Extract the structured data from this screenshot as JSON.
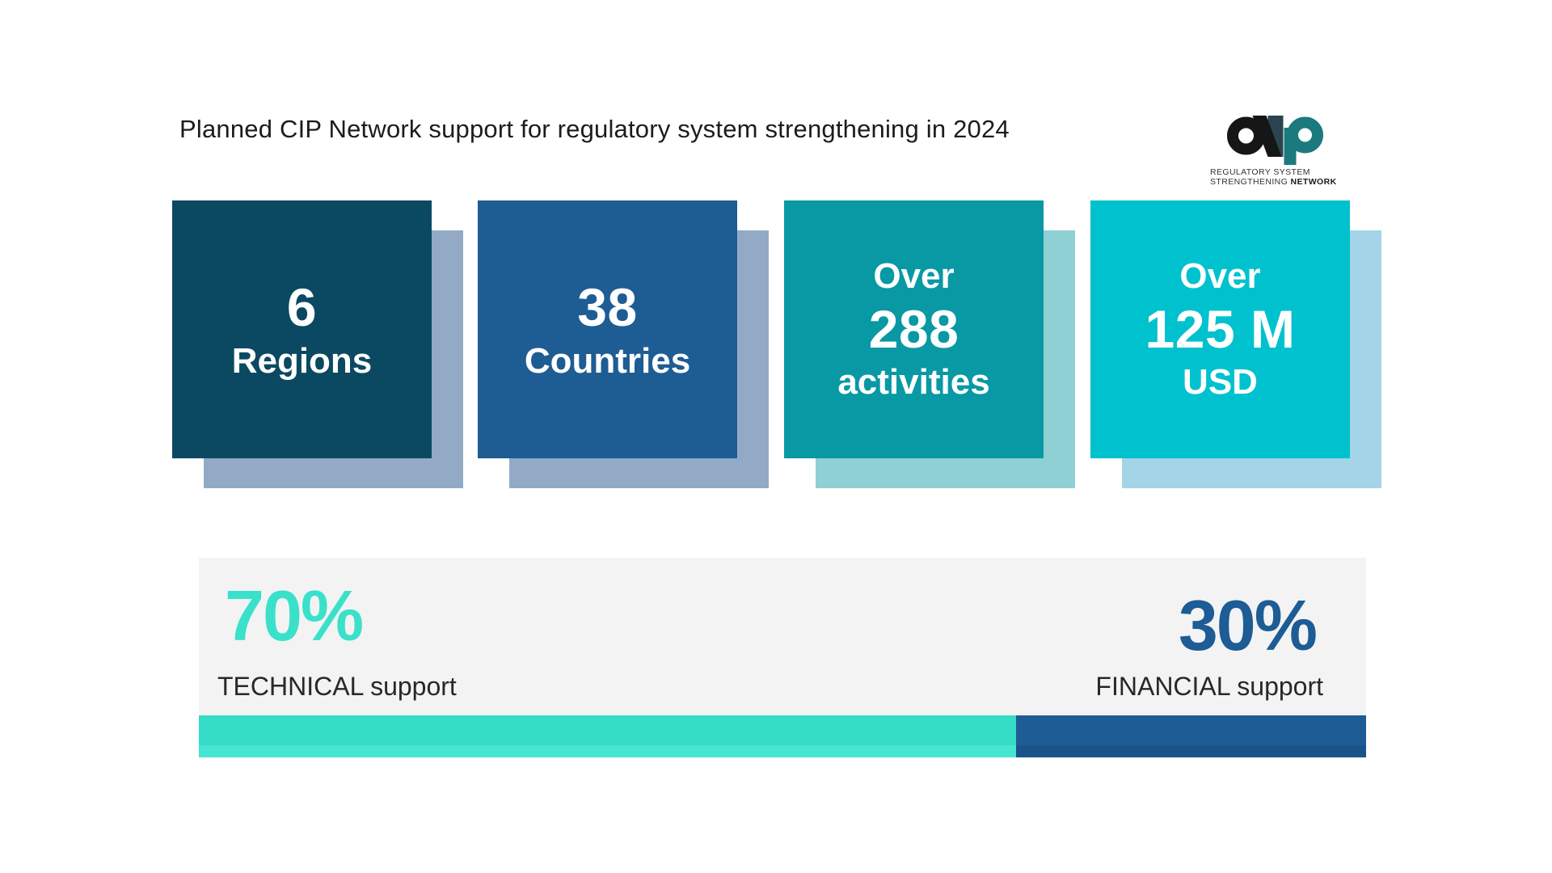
{
  "title": "Planned CIP Network support for regulatory system strengthening in 2024",
  "logo": {
    "line1": "REGULATORY SYSTEM",
    "line2_normal": "STRENGTHENING ",
    "line2_bold": "NETWORK"
  },
  "stats": [
    {
      "name": "regions",
      "color": "#0B4962",
      "shadow": "#93AAC7",
      "lines": [
        "6",
        "Regions"
      ]
    },
    {
      "name": "countries",
      "color": "#1E5C94",
      "shadow": "#93AAC7",
      "lines": [
        "38",
        "Countries"
      ]
    },
    {
      "name": "activities",
      "color": "#0899A4",
      "shadow": "#8FD0D4",
      "lines": [
        "Over",
        "288",
        "activities"
      ]
    },
    {
      "name": "funding",
      "color": "#00C2CE",
      "shadow": "#A4D4E8",
      "lines": [
        "Over",
        "125 M",
        "USD"
      ]
    }
  ],
  "split": {
    "technical": {
      "percent": "70%",
      "label": "TECHNICAL support",
      "color": "#3AE0CA"
    },
    "financial": {
      "percent": "30%",
      "label": "FINANCIAL support",
      "color": "#1D5C95"
    }
  },
  "chart_data": {
    "type": "bar",
    "stacked": true,
    "title": "Planned CIP Network support for regulatory system strengthening in 2024",
    "categories": [
      "TECHNICAL support",
      "FINANCIAL support"
    ],
    "values": [
      70,
      30
    ],
    "unit": "%",
    "colors": [
      "#35DCC6",
      "#1D5C95"
    ],
    "legend_position": "none",
    "grid": false,
    "key_stats": [
      {
        "value": "6",
        "label": "Regions"
      },
      {
        "value": "38",
        "label": "Countries"
      },
      {
        "value": "Over 288",
        "label": "activities"
      },
      {
        "value": "Over 125 M",
        "label": "USD"
      }
    ]
  }
}
